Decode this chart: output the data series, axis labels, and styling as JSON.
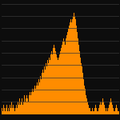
{
  "background_color": "#0d0d0d",
  "bar_color": "#FF8C00",
  "grid_color": "#383838",
  "values": [
    2,
    1,
    3,
    2,
    1,
    2,
    3,
    1,
    2,
    1,
    3,
    2,
    4,
    2,
    3,
    2,
    1,
    2,
    3,
    2,
    4,
    3,
    5,
    3,
    4,
    5,
    3,
    4,
    6,
    4,
    5,
    6,
    5,
    4,
    6,
    7,
    6,
    7,
    8,
    7,
    8,
    9,
    8,
    9,
    10,
    9,
    11,
    10,
    12,
    11,
    13,
    14,
    13,
    15,
    14,
    16,
    15,
    17,
    16,
    18,
    17,
    19,
    20,
    19,
    21,
    22,
    21,
    20,
    19,
    18,
    17,
    18,
    19,
    20,
    21,
    22,
    23,
    24,
    23,
    22,
    24,
    25,
    26,
    27,
    28,
    29,
    30,
    29,
    30,
    31,
    32,
    31,
    30,
    28,
    26,
    24,
    22,
    20,
    18,
    16,
    15,
    13,
    11,
    9,
    8,
    6,
    5,
    4,
    3,
    2,
    2,
    1,
    1,
    2,
    1,
    1,
    2,
    3,
    2,
    1,
    1,
    2,
    3,
    4,
    3,
    4,
    5,
    4,
    3,
    2,
    1,
    2,
    1,
    2,
    3,
    4,
    5,
    4,
    3,
    2,
    1,
    1,
    2,
    3,
    2,
    1
  ],
  "ylim": [
    0,
    35
  ],
  "num_grid_lines": 9,
  "figsize": [
    1.5,
    1.5
  ],
  "dpi": 100
}
